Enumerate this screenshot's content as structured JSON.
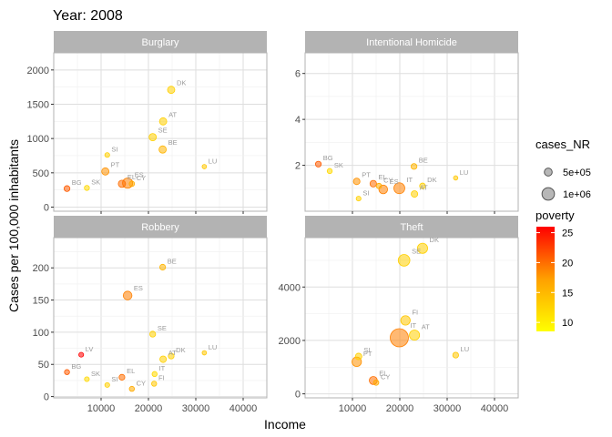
{
  "chart_data": {
    "type": "scatter",
    "title": "Year: 2008",
    "xlabel": "Income",
    "ylabel": "Cases per 100,000 inhabitants",
    "xlim": [
      0,
      45000
    ],
    "x_ticks": [
      "10000",
      "20000",
      "30000",
      "40000"
    ],
    "grid": true,
    "legend_position": "right",
    "facets": [
      {
        "name": "Burglary",
        "ylim": [
          -60,
          2250
        ],
        "y_ticks": [
          "0",
          "500",
          "1000",
          "1500",
          "2000"
        ],
        "points": [
          {
            "label": "DK",
            "x": 24800,
            "y": 1710,
            "size": 0.25,
            "poverty": 12
          },
          {
            "label": "AT",
            "x": 23100,
            "y": 1250,
            "size": 0.25,
            "poverty": 12
          },
          {
            "label": "SE",
            "x": 20900,
            "y": 1020,
            "size": 0.25,
            "poverty": 12
          },
          {
            "label": "BE",
            "x": 23000,
            "y": 840,
            "size": 0.25,
            "poverty": 15
          },
          {
            "label": "LU",
            "x": 31800,
            "y": 590,
            "size": 0.05,
            "poverty": 13
          },
          {
            "label": "SI",
            "x": 11300,
            "y": 760,
            "size": 0.08,
            "poverty": 12
          },
          {
            "label": "PT",
            "x": 10900,
            "y": 520,
            "size": 0.25,
            "poverty": 18
          },
          {
            "label": "BG",
            "x": 2800,
            "y": 270,
            "size": 0.15,
            "poverty": 21
          },
          {
            "label": "SK",
            "x": 7000,
            "y": 280,
            "size": 0.1,
            "poverty": 11
          },
          {
            "label": "EL",
            "x": 14400,
            "y": 340,
            "size": 0.25,
            "poverty": 20
          },
          {
            "label": "ES",
            "x": 15600,
            "y": 350,
            "size": 0.45,
            "poverty": 19
          },
          {
            "label": "CY",
            "x": 16500,
            "y": 340,
            "size": 0.12,
            "poverty": 16
          }
        ]
      },
      {
        "name": "Intentional Homicide",
        "ylim": [
          0,
          6.9
        ],
        "y_ticks": [
          "2",
          "4",
          "6"
        ],
        "points": [
          {
            "label": "BG",
            "x": 2800,
            "y": 2.05,
            "size": 0.15,
            "poverty": 21
          },
          {
            "label": "SK",
            "x": 5200,
            "y": 1.75,
            "size": 0.1,
            "poverty": 11
          },
          {
            "label": "PT",
            "x": 10900,
            "y": 1.3,
            "size": 0.2,
            "poverty": 18
          },
          {
            "label": "EL",
            "x": 14400,
            "y": 1.2,
            "size": 0.2,
            "poverty": 20
          },
          {
            "label": "CY",
            "x": 15600,
            "y": 1.1,
            "size": 0.12,
            "poverty": 16
          },
          {
            "label": "SI",
            "x": 11300,
            "y": 0.55,
            "size": 0.08,
            "poverty": 12
          },
          {
            "label": "ES",
            "x": 16500,
            "y": 0.95,
            "size": 0.35,
            "poverty": 19
          },
          {
            "label": "IT",
            "x": 19900,
            "y": 1.0,
            "size": 0.5,
            "poverty": 19
          },
          {
            "label": "AT",
            "x": 23100,
            "y": 0.75,
            "size": 0.2,
            "poverty": 12
          },
          {
            "label": "DK",
            "x": 24800,
            "y": 1.1,
            "size": 0.15,
            "poverty": 12
          },
          {
            "label": "BE",
            "x": 23000,
            "y": 1.95,
            "size": 0.15,
            "poverty": 15
          },
          {
            "label": "LU",
            "x": 31800,
            "y": 1.45,
            "size": 0.05,
            "poverty": 13
          }
        ]
      },
      {
        "name": "Robbery",
        "ylim": [
          -2,
          247
        ],
        "y_ticks": [
          "0",
          "50",
          "100",
          "150",
          "200"
        ],
        "points": [
          {
            "label": "BE",
            "x": 23000,
            "y": 201,
            "size": 0.15,
            "poverty": 15
          },
          {
            "label": "ES",
            "x": 15600,
            "y": 157,
            "size": 0.35,
            "poverty": 19
          },
          {
            "label": "SE",
            "x": 20900,
            "y": 97,
            "size": 0.15,
            "poverty": 12
          },
          {
            "label": "LV",
            "x": 5800,
            "y": 65,
            "size": 0.08,
            "poverty": 26
          },
          {
            "label": "LU",
            "x": 31800,
            "y": 68,
            "size": 0.05,
            "poverty": 13
          },
          {
            "label": "DK",
            "x": 24800,
            "y": 63,
            "size": 0.15,
            "poverty": 12
          },
          {
            "label": "AT",
            "x": 23100,
            "y": 58,
            "size": 0.2,
            "poverty": 12
          },
          {
            "label": "BG",
            "x": 2800,
            "y": 38,
            "size": 0.1,
            "poverty": 21
          },
          {
            "label": "SK",
            "x": 7000,
            "y": 27,
            "size": 0.08,
            "poverty": 11
          },
          {
            "label": "SI",
            "x": 11300,
            "y": 18,
            "size": 0.08,
            "poverty": 12
          },
          {
            "label": "EL",
            "x": 14400,
            "y": 30,
            "size": 0.15,
            "poverty": 20
          },
          {
            "label": "CY",
            "x": 16500,
            "y": 12,
            "size": 0.1,
            "poverty": 16
          },
          {
            "label": "FI",
            "x": 21200,
            "y": 20,
            "size": 0.1,
            "poverty": 13
          },
          {
            "label": "IT",
            "x": 21300,
            "y": 35,
            "size": 0.1,
            "poverty": 11
          }
        ]
      },
      {
        "name": "Theft",
        "ylim": [
          -150,
          5850
        ],
        "y_ticks": [
          "0",
          "2000",
          "4000"
        ],
        "points": [
          {
            "label": "DK",
            "x": 24800,
            "y": 5450,
            "size": 0.45,
            "poverty": 12
          },
          {
            "label": "SE",
            "x": 20900,
            "y": 5000,
            "size": 0.55,
            "poverty": 12
          },
          {
            "label": "FI",
            "x": 21200,
            "y": 2750,
            "size": 0.4,
            "poverty": 13
          },
          {
            "label": "IT",
            "x": 19900,
            "y": 2100,
            "size": 1.0,
            "poverty": 19
          },
          {
            "label": "AT",
            "x": 23100,
            "y": 2200,
            "size": 0.45,
            "poverty": 12
          },
          {
            "label": "LU",
            "x": 31800,
            "y": 1450,
            "size": 0.15,
            "poverty": 13
          },
          {
            "label": "SI",
            "x": 11300,
            "y": 1400,
            "size": 0.2,
            "poverty": 12
          },
          {
            "label": "PT",
            "x": 10900,
            "y": 1200,
            "size": 0.4,
            "poverty": 18
          },
          {
            "label": "EL",
            "x": 14400,
            "y": 500,
            "size": 0.3,
            "poverty": 20
          },
          {
            "label": "CY",
            "x": 15000,
            "y": 420,
            "size": 0.12,
            "poverty": 16
          }
        ]
      }
    ],
    "legends": {
      "size": {
        "title": "cases_NR",
        "entries": [
          {
            "label": "5e+05",
            "size": 0.35
          },
          {
            "label": "1e+06",
            "size": 0.7
          }
        ]
      },
      "color": {
        "title": "poverty",
        "min": 8.5,
        "max": 26,
        "ticks": [
          "25",
          "20",
          "15",
          "10"
        ],
        "tick_values": [
          25,
          20,
          15,
          10
        ],
        "low_color": "#ffff00",
        "high_color": "#ff0000"
      }
    },
    "colors": {
      "strip_background": "#b3b3b3",
      "panel_border": "#b3b3b3",
      "grid": "#dedede",
      "label_text": "#9a9a9a"
    }
  }
}
